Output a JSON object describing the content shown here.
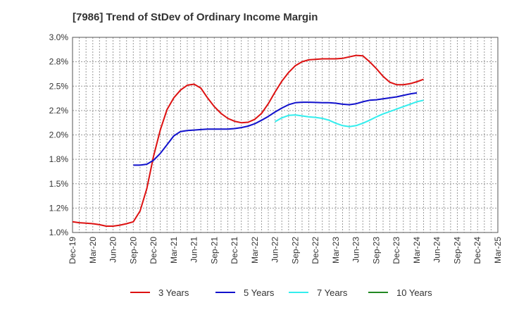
{
  "chart_data": {
    "type": "line",
    "title": "[7986]  Trend of StDev of Ordinary Income Margin",
    "xlabel": "",
    "ylabel": "",
    "x_ticks": [
      "Dec-19",
      "Mar-20",
      "Jun-20",
      "Sep-20",
      "Dec-20",
      "Mar-21",
      "Jun-21",
      "Sep-21",
      "Dec-21",
      "Mar-22",
      "Jun-22",
      "Sep-22",
      "Dec-22",
      "Mar-23",
      "Jun-23",
      "Sep-23",
      "Dec-23",
      "Mar-24",
      "Jun-24",
      "Sep-24",
      "Dec-24",
      "Mar-25"
    ],
    "y_ticks": [
      "1.0%",
      "1.2%",
      "1.5%",
      "1.8%",
      "2.0%",
      "2.2%",
      "2.5%",
      "2.8%",
      "3.0%"
    ],
    "ylim": [
      1.0,
      3.0
    ],
    "grid": true,
    "legend_position": "bottom",
    "series": [
      {
        "name": "3 Years",
        "color": "#dd1111",
        "points": [
          [
            0,
            1.11
          ],
          [
            1,
            1.1
          ],
          [
            2,
            1.095
          ],
          [
            3,
            1.09
          ],
          [
            4,
            1.08
          ],
          [
            5,
            1.065
          ],
          [
            6,
            1.065
          ],
          [
            7,
            1.075
          ],
          [
            8,
            1.09
          ],
          [
            9,
            1.11
          ],
          [
            10,
            1.22
          ],
          [
            11,
            1.45
          ],
          [
            12,
            1.78
          ],
          [
            13,
            2.05
          ],
          [
            14,
            2.26
          ],
          [
            15,
            2.38
          ],
          [
            16,
            2.46
          ],
          [
            17,
            2.51
          ],
          [
            18,
            2.52
          ],
          [
            19,
            2.48
          ],
          [
            20,
            2.38
          ],
          [
            21,
            2.29
          ],
          [
            22,
            2.22
          ],
          [
            23,
            2.17
          ],
          [
            24,
            2.14
          ],
          [
            25,
            2.125
          ],
          [
            26,
            2.13
          ],
          [
            27,
            2.16
          ],
          [
            28,
            2.22
          ],
          [
            29,
            2.32
          ],
          [
            30,
            2.44
          ],
          [
            31,
            2.55
          ],
          [
            32,
            2.64
          ],
          [
            33,
            2.71
          ],
          [
            34,
            2.75
          ],
          [
            35,
            2.77
          ],
          [
            36,
            2.775
          ],
          [
            37,
            2.78
          ],
          [
            38,
            2.78
          ],
          [
            39,
            2.78
          ],
          [
            40,
            2.785
          ],
          [
            41,
            2.8
          ],
          [
            42,
            2.815
          ],
          [
            43,
            2.81
          ],
          [
            44,
            2.75
          ],
          [
            45,
            2.68
          ],
          [
            46,
            2.6
          ],
          [
            47,
            2.54
          ],
          [
            48,
            2.515
          ],
          [
            49,
            2.515
          ],
          [
            50,
            2.525
          ],
          [
            51,
            2.545
          ],
          [
            52,
            2.57
          ]
        ]
      },
      {
        "name": "5 Years",
        "color": "#1111cc",
        "points": [
          [
            9,
            1.69
          ],
          [
            10,
            1.69
          ],
          [
            11,
            1.7
          ],
          [
            12,
            1.74
          ],
          [
            13,
            1.81
          ],
          [
            14,
            1.9
          ],
          [
            15,
            1.99
          ],
          [
            16,
            2.035
          ],
          [
            17,
            2.045
          ],
          [
            18,
            2.05
          ],
          [
            19,
            2.055
          ],
          [
            20,
            2.06
          ],
          [
            21,
            2.06
          ],
          [
            22,
            2.06
          ],
          [
            23,
            2.06
          ],
          [
            24,
            2.065
          ],
          [
            25,
            2.075
          ],
          [
            26,
            2.09
          ],
          [
            27,
            2.115
          ],
          [
            28,
            2.15
          ],
          [
            29,
            2.19
          ],
          [
            30,
            2.235
          ],
          [
            31,
            2.275
          ],
          [
            32,
            2.31
          ],
          [
            33,
            2.33
          ],
          [
            34,
            2.335
          ],
          [
            35,
            2.335
          ],
          [
            36,
            2.333
          ],
          [
            37,
            2.33
          ],
          [
            38,
            2.33
          ],
          [
            39,
            2.325
          ],
          [
            40,
            2.315
          ],
          [
            41,
            2.31
          ],
          [
            42,
            2.32
          ],
          [
            43,
            2.34
          ],
          [
            44,
            2.355
          ],
          [
            45,
            2.36
          ],
          [
            46,
            2.37
          ],
          [
            47,
            2.38
          ],
          [
            48,
            2.39
          ],
          [
            49,
            2.405
          ],
          [
            50,
            2.42
          ],
          [
            51,
            2.43
          ]
        ]
      },
      {
        "name": "7 Years",
        "color": "#33eeee",
        "points": [
          [
            30,
            2.135
          ],
          [
            31,
            2.175
          ],
          [
            32,
            2.2
          ],
          [
            33,
            2.205
          ],
          [
            34,
            2.195
          ],
          [
            35,
            2.185
          ],
          [
            36,
            2.18
          ],
          [
            37,
            2.17
          ],
          [
            38,
            2.15
          ],
          [
            39,
            2.12
          ],
          [
            40,
            2.095
          ],
          [
            41,
            2.085
          ],
          [
            42,
            2.095
          ],
          [
            43,
            2.12
          ],
          [
            44,
            2.15
          ],
          [
            45,
            2.185
          ],
          [
            46,
            2.215
          ],
          [
            47,
            2.24
          ],
          [
            48,
            2.265
          ],
          [
            49,
            2.29
          ],
          [
            50,
            2.315
          ],
          [
            51,
            2.34
          ],
          [
            52,
            2.355
          ]
        ]
      },
      {
        "name": "10 Years",
        "color": "#228822",
        "points": []
      }
    ]
  }
}
